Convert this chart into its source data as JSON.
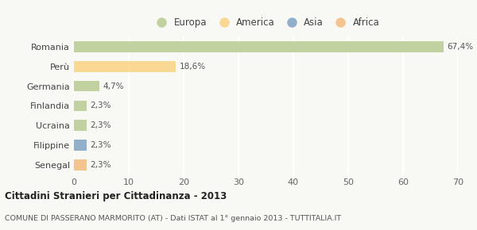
{
  "categories": [
    "Romania",
    "Perù",
    "Germania",
    "Finlandia",
    "Ucraina",
    "Filippine",
    "Senegal"
  ],
  "values": [
    67.4,
    18.6,
    4.7,
    2.3,
    2.3,
    2.3,
    2.3
  ],
  "labels": [
    "67,4%",
    "18,6%",
    "4,7%",
    "2,3%",
    "2,3%",
    "2,3%",
    "2,3%"
  ],
  "bar_colors": [
    "#b5c98e",
    "#f9d27d",
    "#b5c98e",
    "#b5c98e",
    "#b5c98e",
    "#7a9fc2",
    "#f4b97a"
  ],
  "legend_entries": [
    {
      "label": "Europa",
      "color": "#b5c98e"
    },
    {
      "label": "America",
      "color": "#f9d27d"
    },
    {
      "label": "Asia",
      "color": "#7a9fc2"
    },
    {
      "label": "Africa",
      "color": "#f4b97a"
    }
  ],
  "xlim": [
    0,
    70
  ],
  "xticks": [
    0,
    10,
    20,
    30,
    40,
    50,
    60,
    70
  ],
  "title": "Cittadini Stranieri per Cittadinanza - 2013",
  "subtitle": "COMUNE DI PASSERANO MARMORITO (AT) - Dati ISTAT al 1° gennaio 2013 - TUTTITALIA.IT",
  "background_color": "#f8f8f5",
  "grid_color": "#ffffff",
  "bar_alpha": 0.82
}
